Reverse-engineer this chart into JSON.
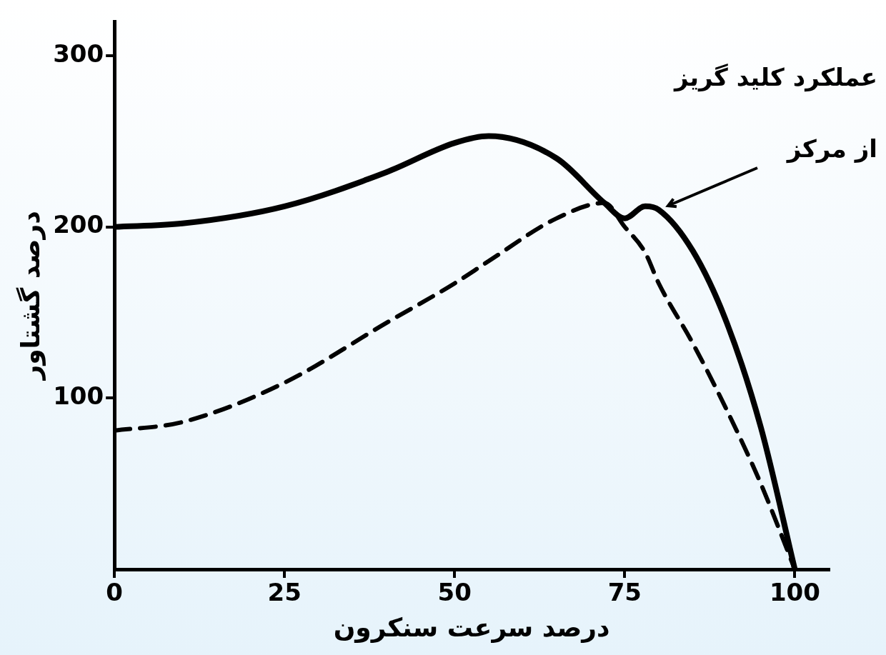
{
  "chart_data": {
    "type": "line",
    "xlabel": "درصد سرعت سنکرون",
    "ylabel": "درصد گشتاور",
    "x": [
      0,
      10,
      25,
      40,
      50,
      55,
      65,
      72,
      75,
      78,
      80,
      85,
      90,
      95,
      100
    ],
    "series": [
      {
        "color": "#000000",
        "line_style": "solid",
        "values": [
          200,
          202,
          212,
          232,
          249,
          253,
          240,
          214,
          205,
          212,
          210,
          186,
          144,
          83,
          0
        ]
      },
      {
        "color": "#000000",
        "line_style": "dashed",
        "values": [
          81,
          86,
          109,
          144,
          167,
          180,
          205,
          214,
          200,
          185,
          167,
          132,
          93,
          50,
          0
        ]
      }
    ],
    "xlim": [
      0,
      105
    ],
    "xticks": [
      0,
      25,
      50,
      75,
      100
    ],
    "ylim": [
      0,
      320
    ],
    "yticks": [
      100,
      200,
      300
    ],
    "grid": false,
    "marker": "none",
    "annotations": [
      "عملکرد کلید گریز از مرکز"
    ]
  }
}
